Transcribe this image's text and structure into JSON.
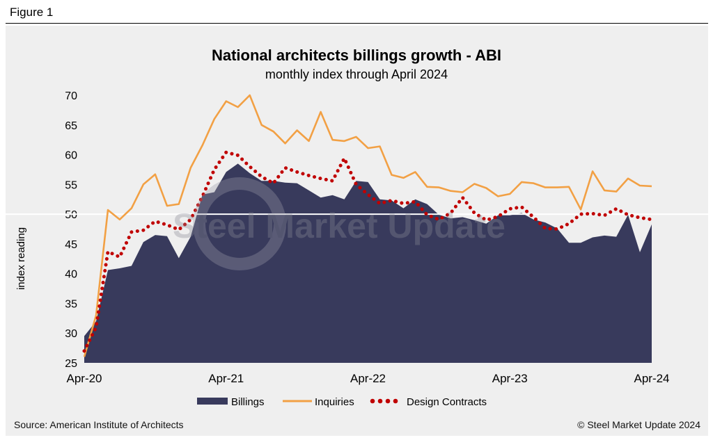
{
  "figure_label": "Figure 1",
  "source": "Source: American Institute of Architects",
  "copyright": "© Steel Market Update 2024",
  "watermark": "Steel Market Update",
  "colors": {
    "billings": "#383a5c",
    "inquiries": "#f2a044",
    "design_contracts": "#c00000",
    "panel": "#efefef",
    "reference_line": "#ffffff"
  },
  "chart_data": {
    "type": "area",
    "title": "National architects billings growth - ABI",
    "subtitle": "monthly index through April 2024",
    "ylabel": "index reading",
    "xlabel": "",
    "ylim": [
      25,
      70
    ],
    "yticks": [
      "70",
      "65",
      "60",
      "55",
      "50",
      "45",
      "40",
      "35",
      "30",
      "25"
    ],
    "ytick_values": [
      70,
      65,
      60,
      55,
      50,
      45,
      40,
      35,
      30,
      25
    ],
    "xticks": [
      {
        "label": "Apr-20",
        "index": 0
      },
      {
        "label": "Apr-21",
        "index": 12
      },
      {
        "label": "Apr-22",
        "index": 24
      },
      {
        "label": "Apr-23",
        "index": 36
      },
      {
        "label": "Apr-24",
        "index": 48
      }
    ],
    "reference_value": 50,
    "legend": [
      "Billings",
      "Inquiries",
      "Design Contracts"
    ],
    "months": [
      "Apr-20",
      "May-20",
      "Jun-20",
      "Jul-20",
      "Aug-20",
      "Sep-20",
      "Oct-20",
      "Nov-20",
      "Dec-20",
      "Jan-21",
      "Feb-21",
      "Mar-21",
      "Apr-21",
      "May-21",
      "Jun-21",
      "Jul-21",
      "Aug-21",
      "Sep-21",
      "Oct-21",
      "Nov-21",
      "Dec-21",
      "Jan-22",
      "Feb-22",
      "Mar-22",
      "Apr-22",
      "May-22",
      "Jun-22",
      "Jul-22",
      "Aug-22",
      "Sep-22",
      "Oct-22",
      "Nov-22",
      "Dec-22",
      "Jan-23",
      "Feb-23",
      "Mar-23",
      "Apr-23",
      "May-23",
      "Jun-23",
      "Jul-23",
      "Aug-23",
      "Sep-23",
      "Oct-23",
      "Nov-23",
      "Dec-23",
      "Jan-24",
      "Feb-24",
      "Mar-24",
      "Apr-24"
    ],
    "series": [
      {
        "name": "Billings",
        "values": [
          29.5,
          32.0,
          40.6,
          40.9,
          41.3,
          45.3,
          46.5,
          46.3,
          42.6,
          46.2,
          53.3,
          53.7,
          57.1,
          58.5,
          56.9,
          55.6,
          55.6,
          55.3,
          55.2,
          54.0,
          52.8,
          53.2,
          52.5,
          55.6,
          55.4,
          52.5,
          52.3,
          51.0,
          52.5,
          51.7,
          49.9,
          49.3,
          49.5,
          49.0,
          48.4,
          49.8,
          49.8,
          50.2,
          49.1,
          48.6,
          47.6,
          45.2,
          45.2,
          46.1,
          46.4,
          46.2,
          49.9,
          43.6,
          48.3
        ]
      },
      {
        "name": "Inquiries",
        "values": [
          26.0,
          33.0,
          50.7,
          49.1,
          51.0,
          55.0,
          56.7,
          51.4,
          51.7,
          57.8,
          61.6,
          66.0,
          69.0,
          68.0,
          70.0,
          65.0,
          63.9,
          61.9,
          64.1,
          62.3,
          67.2,
          62.5,
          62.3,
          63.0,
          61.1,
          61.4,
          56.6,
          56.1,
          57.1,
          54.6,
          54.5,
          53.9,
          53.7,
          55.1,
          54.4,
          53.0,
          53.4,
          55.4,
          55.2,
          54.5,
          54.5,
          54.6,
          50.8,
          57.2,
          54.0,
          53.8,
          56.0,
          54.8,
          54.7
        ]
      },
      {
        "name": "Design Contracts",
        "values": [
          27.0,
          31.0,
          43.7,
          42.8,
          47.0,
          47.3,
          48.8,
          48.2,
          47.4,
          49.1,
          53.0,
          57.5,
          60.4,
          59.9,
          58.0,
          56.3,
          55.2,
          57.8,
          57.1,
          56.5,
          56.0,
          55.6,
          59.4,
          55.0,
          53.3,
          51.8,
          52.3,
          51.8,
          52.1,
          49.9,
          49.1,
          50.2,
          52.8,
          50.2,
          49.0,
          49.6,
          50.9,
          51.2,
          49.5,
          47.6,
          47.5,
          48.4,
          50.0,
          50.1,
          49.8,
          50.9,
          49.9,
          49.4,
          49.1
        ]
      }
    ]
  }
}
